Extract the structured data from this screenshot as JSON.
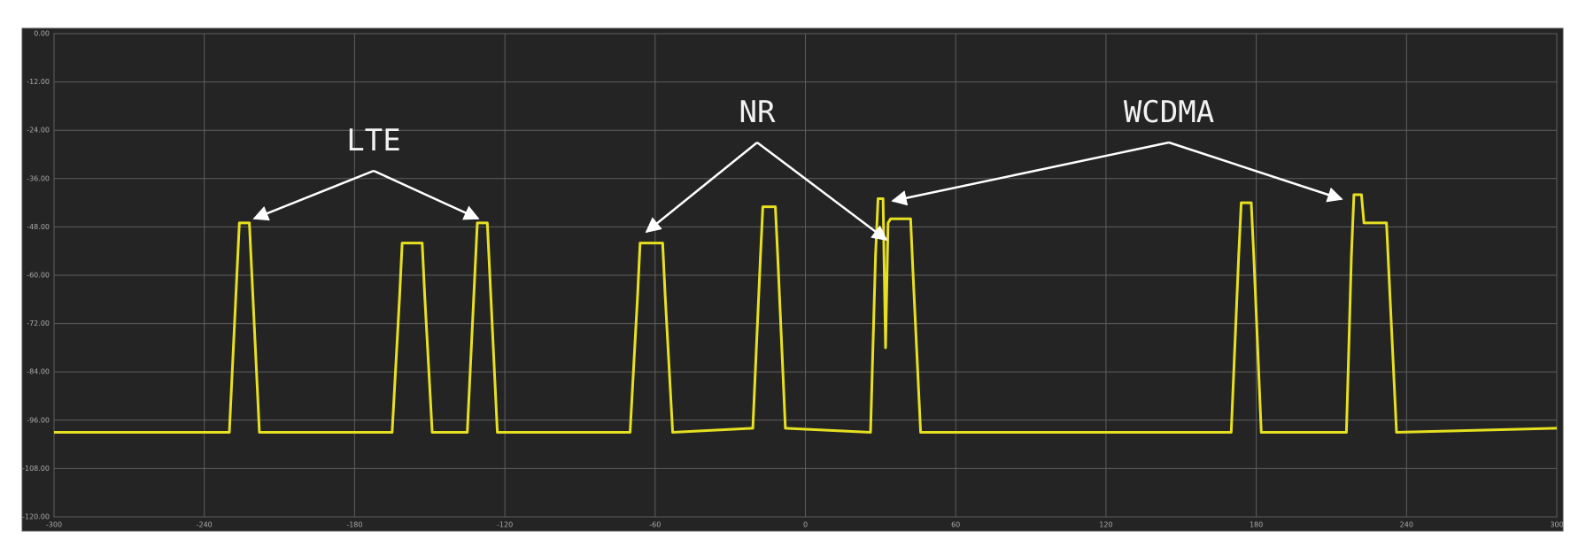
{
  "chart_data": {
    "type": "line",
    "annotations": [
      "LTE",
      "NR",
      "WCDMA"
    ],
    "x": [
      -300,
      -230,
      -227,
      -226,
      -222,
      -221,
      -218,
      -165,
      -162,
      -161,
      -153,
      -152,
      -149,
      -135,
      -132,
      -131,
      -127,
      -126,
      -123,
      -70,
      -67,
      -66,
      -57,
      -56,
      -53,
      -21,
      -18,
      -17,
      -12,
      -11,
      -8,
      26,
      28,
      29,
      31,
      32,
      33,
      34,
      42,
      43,
      46,
      170,
      173,
      174,
      178,
      179,
      182,
      216,
      218,
      219,
      222,
      223,
      224,
      232,
      233,
      236,
      300
    ],
    "series": [
      {
        "color": "#e6e020",
        "values": [
          -99,
          -99,
          -60,
          -47,
          -47,
          -60,
          -99,
          -99,
          -65,
          -52,
          -52,
          -65,
          -99,
          -99,
          -60,
          -47,
          -47,
          -60,
          -99,
          -99,
          -65,
          -52,
          -52,
          -65,
          -99,
          -98,
          -56,
          -43,
          -43,
          -56,
          -98,
          -99,
          -55,
          -41,
          -41,
          -78,
          -47,
          -46,
          -46,
          -60,
          -99,
          -99,
          -55,
          -42,
          -42,
          -55,
          -99,
          -99,
          -55,
          -40,
          -40,
          -47,
          -47,
          -47,
          -60,
          -99,
          -98
        ]
      }
    ],
    "xlim": [
      -300,
      300
    ],
    "xticks": [
      -300,
      -240,
      -180,
      -120,
      -60,
      0,
      60,
      120,
      180,
      240,
      300
    ],
    "ylim": [
      -120,
      0
    ],
    "yticks": [
      {
        "value": 0,
        "label": "0.00"
      },
      {
        "value": -12,
        "label": "-12.00"
      },
      {
        "value": -24,
        "label": "-24.00"
      },
      {
        "value": -36,
        "label": "-36.00"
      },
      {
        "value": -48,
        "label": "-48.00"
      },
      {
        "value": -60,
        "label": "-60.00"
      },
      {
        "value": -72,
        "label": "-72.00"
      },
      {
        "value": -84,
        "label": "-84.00"
      },
      {
        "value": -96,
        "label": "-96.00"
      },
      {
        "value": -108,
        "label": "-108.00"
      },
      {
        "value": -120,
        "label": "-120.00"
      }
    ],
    "grid": true
  }
}
